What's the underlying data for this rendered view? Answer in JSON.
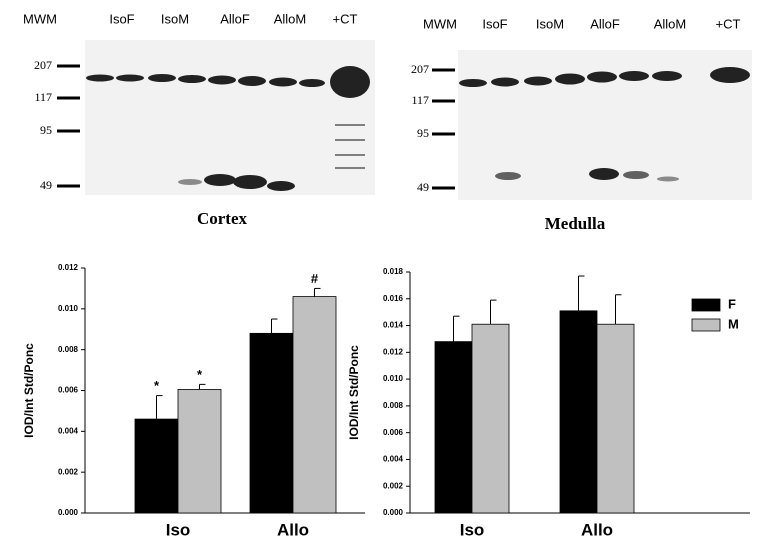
{
  "blots": [
    {
      "title": "Cortex",
      "lanes": [
        "MWM",
        "IsoF",
        "IsoM",
        "AlloF",
        "AlloM",
        "+CT"
      ],
      "markers": [
        "207",
        "117",
        "95",
        "49"
      ]
    },
    {
      "title": "Medulla",
      "lanes": [
        "MWM",
        "IsoF",
        "IsoM",
        "AlloF",
        "AlloM",
        "+CT"
      ],
      "markers": [
        "207",
        "117",
        "95",
        "49"
      ]
    }
  ],
  "chart_data": [
    {
      "type": "bar",
      "ylabel": "IOD/Int Std/Ponc",
      "categories": [
        "Iso",
        "Allo"
      ],
      "series": [
        {
          "color": "#000000",
          "values": [
            0.0046,
            0.0088
          ],
          "errors": [
            0.00115,
            0.0007
          ],
          "annotations": [
            "*",
            null
          ]
        },
        {
          "color": "#c0c0c0",
          "values": [
            0.00605,
            0.0106
          ],
          "errors": [
            0.00025,
            0.0004
          ],
          "annotations": [
            "*",
            "#"
          ]
        }
      ],
      "ylim": [
        0,
        0.012
      ],
      "yticks": [
        {
          "value": 0,
          "label": "0.000"
        },
        {
          "value": 0.002,
          "label": "0.002"
        },
        {
          "value": 0.004,
          "label": "0.004"
        },
        {
          "value": 0.006,
          "label": "0.006"
        },
        {
          "value": 0.008,
          "label": "0.008"
        },
        {
          "value": 0.01,
          "label": "0.010"
        },
        {
          "value": 0.012,
          "label": "0.012"
        }
      ]
    },
    {
      "type": "bar",
      "ylabel": "IOD/Int Std/Ponc",
      "categories": [
        "Iso",
        "Allo"
      ],
      "legend": "upper right",
      "series": [
        {
          "name": "F",
          "color": "#000000",
          "values": [
            0.0128,
            0.0151
          ],
          "errors": [
            0.0019,
            0.0026
          ]
        },
        {
          "name": "M",
          "color": "#c0c0c0",
          "values": [
            0.0141,
            0.0141
          ],
          "errors": [
            0.0018,
            0.0022
          ]
        }
      ],
      "ylim": [
        0,
        0.018
      ],
      "yticks": [
        {
          "value": 0,
          "label": "0.000"
        },
        {
          "value": 0.002,
          "label": "0.002"
        },
        {
          "value": 0.004,
          "label": "0.004"
        },
        {
          "value": 0.006,
          "label": "0.006"
        },
        {
          "value": 0.008,
          "label": "0.008"
        },
        {
          "value": 0.01,
          "label": "0.010"
        },
        {
          "value": 0.012,
          "label": "0.012"
        },
        {
          "value": 0.014,
          "label": "0.014"
        },
        {
          "value": 0.016,
          "label": "0.016"
        },
        {
          "value": 0.018,
          "label": "0.018"
        }
      ]
    }
  ]
}
